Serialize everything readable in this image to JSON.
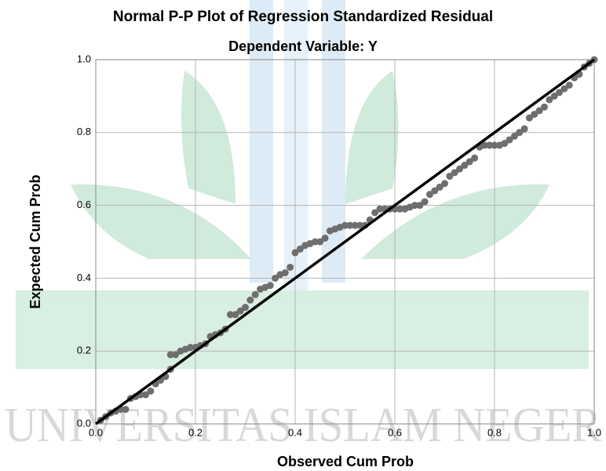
{
  "chart_data": {
    "type": "scatter",
    "title": "Normal P-P Plot of Regression Standardized Residual",
    "subtitle": "Dependent Variable: Y",
    "x_label": "Observed Cum Prob",
    "y_label": "Expected Cum Prob",
    "watermark": "UNIVERSITAS ISLAM NEGER",
    "color": "#6e6e6e",
    "grid": true,
    "xlim": [
      0,
      1
    ],
    "ylim": [
      0,
      1
    ],
    "xticks": [
      {
        "value": 0,
        "label": "0.0"
      },
      {
        "value": 0.2,
        "label": "0.2"
      },
      {
        "value": 0.4,
        "label": "0.4"
      },
      {
        "value": 0.6,
        "label": "0.6"
      },
      {
        "value": 0.8,
        "label": "0.8"
      },
      {
        "value": 1,
        "label": "1.0"
      }
    ],
    "yticks": [
      {
        "value": 0,
        "label": "0.0"
      },
      {
        "value": 0.2,
        "label": "0.2"
      },
      {
        "value": 0.4,
        "label": "0.4"
      },
      {
        "value": 0.6,
        "label": "0.6"
      },
      {
        "value": 0.8,
        "label": "0.8"
      },
      {
        "value": 1,
        "label": "1.0"
      }
    ],
    "x": [
      0.01,
      0.02,
      0.03,
      0.04,
      0.05,
      0.06,
      0.07,
      0.08,
      0.09,
      0.1,
      0.11,
      0.12,
      0.13,
      0.14,
      0.15,
      0.15,
      0.16,
      0.17,
      0.18,
      0.19,
      0.2,
      0.21,
      0.22,
      0.23,
      0.24,
      0.25,
      0.26,
      0.27,
      0.28,
      0.29,
      0.3,
      0.31,
      0.32,
      0.33,
      0.34,
      0.35,
      0.36,
      0.37,
      0.38,
      0.39,
      0.4,
      0.41,
      0.42,
      0.43,
      0.44,
      0.45,
      0.46,
      0.47,
      0.48,
      0.49,
      0.5,
      0.51,
      0.52,
      0.53,
      0.54,
      0.55,
      0.56,
      0.57,
      0.58,
      0.59,
      0.6,
      0.61,
      0.62,
      0.63,
      0.64,
      0.65,
      0.66,
      0.67,
      0.68,
      0.69,
      0.7,
      0.71,
      0.72,
      0.73,
      0.74,
      0.75,
      0.76,
      0.77,
      0.78,
      0.79,
      0.8,
      0.81,
      0.82,
      0.83,
      0.84,
      0.85,
      0.86,
      0.87,
      0.88,
      0.89,
      0.9,
      0.91,
      0.92,
      0.93,
      0.94,
      0.95,
      0.96,
      0.97,
      0.98,
      0.99,
      1.0
    ],
    "values": [
      0.01,
      0.02,
      0.03,
      0.035,
      0.04,
      0.04,
      0.07,
      0.075,
      0.08,
      0.08,
      0.09,
      0.11,
      0.12,
      0.13,
      0.15,
      0.19,
      0.19,
      0.2,
      0.205,
      0.21,
      0.21,
      0.215,
      0.22,
      0.24,
      0.245,
      0.25,
      0.26,
      0.3,
      0.3,
      0.31,
      0.32,
      0.34,
      0.355,
      0.37,
      0.375,
      0.38,
      0.4,
      0.41,
      0.415,
      0.43,
      0.47,
      0.48,
      0.49,
      0.495,
      0.5,
      0.5,
      0.51,
      0.53,
      0.535,
      0.54,
      0.545,
      0.545,
      0.545,
      0.545,
      0.545,
      0.56,
      0.58,
      0.59,
      0.59,
      0.59,
      0.59,
      0.59,
      0.59,
      0.595,
      0.6,
      0.6,
      0.61,
      0.63,
      0.64,
      0.65,
      0.66,
      0.68,
      0.69,
      0.7,
      0.71,
      0.72,
      0.73,
      0.76,
      0.765,
      0.765,
      0.765,
      0.765,
      0.77,
      0.78,
      0.79,
      0.8,
      0.81,
      0.84,
      0.85,
      0.86,
      0.87,
      0.89,
      0.9,
      0.91,
      0.92,
      0.93,
      0.95,
      0.96,
      0.98,
      0.99,
      1.0
    ],
    "reference_line": {
      "color": "#000000",
      "x": [
        0,
        1
      ],
      "values": [
        0,
        1
      ]
    }
  }
}
